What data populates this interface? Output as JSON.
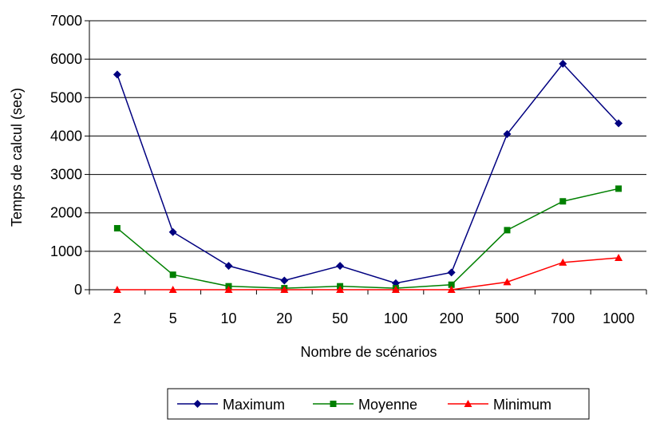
{
  "chart_data": {
    "type": "line",
    "title": "",
    "xlabel": "Nombre de scénarios",
    "ylabel": "Temps de calcul (sec)",
    "categories": [
      "2",
      "5",
      "10",
      "20",
      "50",
      "100",
      "200",
      "500",
      "700",
      "1000"
    ],
    "ylim": [
      0,
      7000
    ],
    "yticks": [
      0,
      1000,
      2000,
      3000,
      4000,
      5000,
      6000,
      7000
    ],
    "grid": true,
    "legend_position": "bottom",
    "series": [
      {
        "name": "Maximum",
        "color": "#000080",
        "marker": "diamond",
        "values": [
          5600,
          1500,
          620,
          240,
          620,
          170,
          450,
          4050,
          5880,
          4330
        ]
      },
      {
        "name": "Moyenne",
        "color": "#008000",
        "marker": "square",
        "values": [
          1600,
          390,
          90,
          40,
          90,
          40,
          130,
          1550,
          2300,
          2630
        ]
      },
      {
        "name": "Minimum",
        "color": "#ff0000",
        "marker": "triangle",
        "values": [
          0,
          0,
          0,
          0,
          0,
          0,
          0,
          200,
          710,
          830
        ]
      }
    ]
  }
}
